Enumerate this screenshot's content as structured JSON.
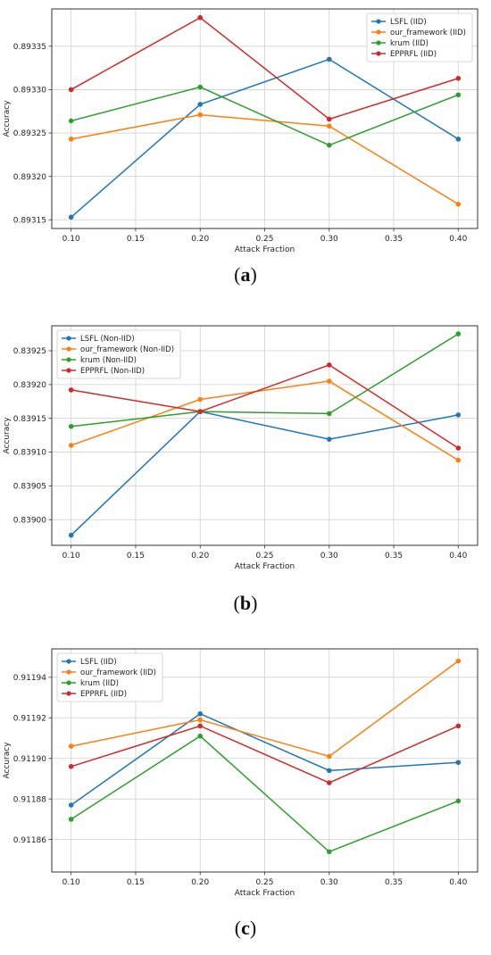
{
  "captions": [
    "a",
    "b",
    "c"
  ],
  "chart_data": [
    {
      "type": "line",
      "xlabel": "Attack Fraction",
      "ylabel": "Accuracy",
      "x": [
        0.1,
        0.2,
        0.3,
        0.4
      ],
      "xticks": [
        "0.10",
        "0.15",
        "0.20",
        "0.25",
        "0.30",
        "0.35",
        "0.40"
      ],
      "xtick_values": [
        0.1,
        0.15,
        0.2,
        0.25,
        0.3,
        0.35,
        0.4
      ],
      "yticks": [
        "0.89315",
        "0.89320",
        "0.89325",
        "0.89330",
        "0.89335"
      ],
      "ytick_values": [
        0.89315,
        0.8932,
        0.89325,
        0.8933,
        0.89335
      ],
      "xlim": [
        0.085,
        0.415
      ],
      "ylim": [
        0.89314,
        0.893393
      ],
      "grid": true,
      "legend_position": "top-right",
      "series": [
        {
          "name": "LSFL (IID)",
          "color": "#1f77b4",
          "values": [
            0.893153,
            0.893283,
            0.893335,
            0.893243
          ]
        },
        {
          "name": "our_framework (IID)",
          "color": "#ff7f0e",
          "values": [
            0.893243,
            0.893271,
            0.893258,
            0.893168
          ]
        },
        {
          "name": "krum (IID)",
          "color": "#2ca02c",
          "values": [
            0.893264,
            0.893303,
            0.893236,
            0.893294
          ]
        },
        {
          "name": "EPPRFL (IID)",
          "color": "#d62728",
          "values": [
            0.8933,
            0.893383,
            0.893266,
            0.893313
          ]
        }
      ]
    },
    {
      "type": "line",
      "xlabel": "Attack Fraction",
      "ylabel": "Accuracy",
      "x": [
        0.1,
        0.2,
        0.3,
        0.4
      ],
      "xticks": [
        "0.10",
        "0.15",
        "0.20",
        "0.25",
        "0.30",
        "0.35",
        "0.40"
      ],
      "xtick_values": [
        0.1,
        0.15,
        0.2,
        0.25,
        0.3,
        0.35,
        0.4
      ],
      "yticks": [
        "0.83900",
        "0.83905",
        "0.83910",
        "0.83915",
        "0.83920",
        "0.83925"
      ],
      "ytick_values": [
        0.839,
        0.83905,
        0.8391,
        0.83915,
        0.8392,
        0.83925
      ],
      "xlim": [
        0.085,
        0.415
      ],
      "ylim": [
        0.838962,
        0.839287
      ],
      "grid": true,
      "legend_position": "top-left",
      "series": [
        {
          "name": "LSFL (Non-IID)",
          "color": "#1f77b4",
          "values": [
            0.838977,
            0.83916,
            0.839119,
            0.839155
          ]
        },
        {
          "name": "our_framework (Non-IID)",
          "color": "#ff7f0e",
          "values": [
            0.83911,
            0.839178,
            0.839205,
            0.839088
          ]
        },
        {
          "name": "krum (Non-IID)",
          "color": "#2ca02c",
          "values": [
            0.839138,
            0.83916,
            0.839157,
            0.839275
          ]
        },
        {
          "name": "EPPRFL (Non-IID)",
          "color": "#d62728",
          "values": [
            0.839192,
            0.83916,
            0.839229,
            0.839106
          ]
        }
      ]
    },
    {
      "type": "line",
      "xlabel": "Attack Fraction",
      "ylabel": "Accuracy",
      "x": [
        0.1,
        0.2,
        0.3,
        0.4
      ],
      "xticks": [
        "0.10",
        "0.15",
        "0.20",
        "0.25",
        "0.30",
        "0.35",
        "0.40"
      ],
      "xtick_values": [
        0.1,
        0.15,
        0.2,
        0.25,
        0.3,
        0.35,
        0.4
      ],
      "yticks": [
        "0.91186",
        "0.91188",
        "0.91190",
        "0.91192",
        "0.91194"
      ],
      "ytick_values": [
        0.91186,
        0.91188,
        0.9119,
        0.91192,
        0.91194
      ],
      "xlim": [
        0.085,
        0.415
      ],
      "ylim": [
        0.911844,
        0.911954
      ],
      "grid": true,
      "legend_position": "top-left",
      "series": [
        {
          "name": "LSFL (IID)",
          "color": "#1f77b4",
          "values": [
            0.911877,
            0.911922,
            0.911894,
            0.911898
          ]
        },
        {
          "name": "our_framework (IID)",
          "color": "#ff7f0e",
          "values": [
            0.911906,
            0.911919,
            0.911901,
            0.911948
          ]
        },
        {
          "name": "krum (IID)",
          "color": "#2ca02c",
          "values": [
            0.91187,
            0.911911,
            0.911854,
            0.911879
          ]
        },
        {
          "name": "EPPRFL (IID)",
          "color": "#d62728",
          "values": [
            0.911896,
            0.911916,
            0.911888,
            0.911916
          ]
        }
      ]
    }
  ]
}
